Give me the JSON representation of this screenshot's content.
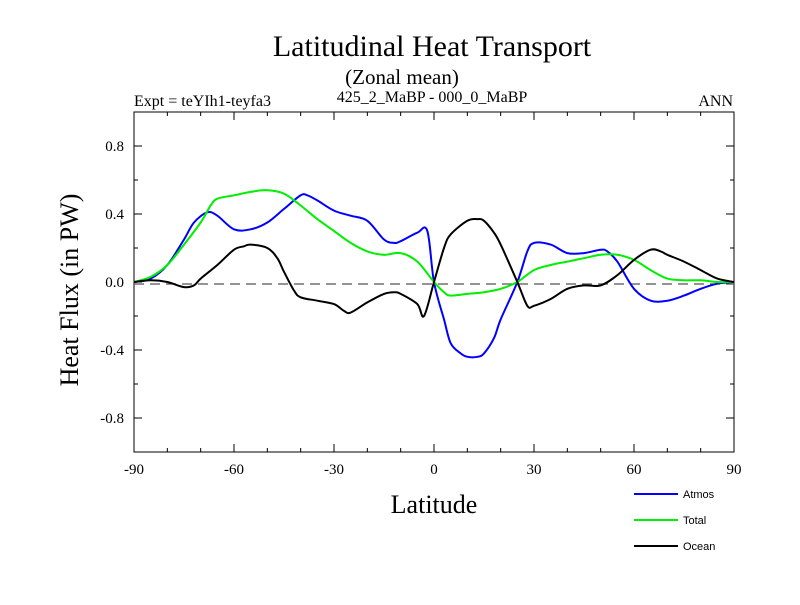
{
  "chart_data": {
    "type": "line",
    "title": "Latitudinal Heat Transport",
    "subtitle": "(Zonal mean)",
    "left_label": "Expt = teYIh1-teyfa3",
    "center_label": "425_2_MaBP - 000_0_MaBP",
    "right_label": "ANN",
    "xlabel": "Latitude",
    "ylabel": "Heat Flux (in PW)",
    "xlim": [
      -90,
      90
    ],
    "ylim": [
      -1.0,
      1.0
    ],
    "xticks": [
      -90,
      -60,
      -30,
      0,
      30,
      60,
      90
    ],
    "xtick_labels": [
      "-90",
      "-60",
      "-30",
      "0",
      "30",
      "60",
      "90"
    ],
    "yticks": [
      -0.8,
      -0.4,
      0.0,
      0.4,
      0.8
    ],
    "ytick_labels": [
      "-0.8",
      "-0.4",
      "0.0",
      "0.4",
      "0.8"
    ],
    "grid": false,
    "zero_line": "dashed",
    "legend_position": "bottom-right",
    "series": [
      {
        "name": "Atmos",
        "color": "#0000ff",
        "x": [
          -90,
          -85,
          -80,
          -75,
          -72,
          -68,
          -65,
          -60,
          -55,
          -50,
          -45,
          -40,
          -38,
          -35,
          -30,
          -25,
          -20,
          -15,
          -12,
          -10,
          -5,
          -2,
          0,
          3,
          5,
          8,
          10,
          13,
          15,
          18,
          20,
          25,
          28,
          30,
          35,
          40,
          45,
          50,
          52,
          55,
          60,
          65,
          70,
          75,
          80,
          85,
          90
        ],
        "y": [
          0.0,
          0.02,
          0.1,
          0.25,
          0.35,
          0.41,
          0.39,
          0.31,
          0.31,
          0.35,
          0.43,
          0.51,
          0.51,
          0.48,
          0.42,
          0.39,
          0.36,
          0.25,
          0.23,
          0.24,
          0.29,
          0.3,
          0.0,
          -0.22,
          -0.36,
          -0.42,
          -0.44,
          -0.44,
          -0.42,
          -0.33,
          -0.22,
          0.0,
          0.18,
          0.23,
          0.22,
          0.17,
          0.17,
          0.19,
          0.18,
          0.12,
          -0.04,
          -0.11,
          -0.11,
          -0.08,
          -0.04,
          -0.01,
          0.0
        ]
      },
      {
        "name": "Total",
        "color": "#00ee00",
        "x": [
          -90,
          -85,
          -80,
          -75,
          -70,
          -67,
          -65,
          -60,
          -55,
          -50,
          -45,
          -40,
          -35,
          -30,
          -25,
          -20,
          -15,
          -10,
          -5,
          0,
          3,
          5,
          10,
          15,
          20,
          25,
          30,
          35,
          40,
          45,
          50,
          55,
          60,
          65,
          70,
          75,
          80,
          85,
          90
        ],
        "y": [
          0.0,
          0.03,
          0.1,
          0.22,
          0.35,
          0.45,
          0.49,
          0.51,
          0.53,
          0.54,
          0.52,
          0.45,
          0.37,
          0.3,
          0.23,
          0.18,
          0.16,
          0.17,
          0.12,
          0.0,
          -0.06,
          -0.08,
          -0.07,
          -0.06,
          -0.04,
          0.0,
          0.07,
          0.1,
          0.12,
          0.14,
          0.16,
          0.16,
          0.13,
          0.07,
          0.02,
          0.01,
          0.01,
          0.0,
          0.0
        ]
      },
      {
        "name": "Ocean",
        "color": "#000000",
        "x": [
          -90,
          -85,
          -80,
          -75,
          -72,
          -70,
          -65,
          -60,
          -57,
          -55,
          -50,
          -47,
          -45,
          -42,
          -40,
          -35,
          -30,
          -27,
          -25,
          -20,
          -15,
          -12,
          -10,
          -5,
          -3,
          0,
          3,
          5,
          10,
          13,
          15,
          18,
          20,
          25,
          28,
          30,
          35,
          40,
          45,
          50,
          55,
          60,
          65,
          68,
          70,
          75,
          80,
          85,
          90
        ],
        "y": [
          0.0,
          0.01,
          0.0,
          -0.03,
          -0.02,
          0.02,
          0.1,
          0.19,
          0.21,
          0.22,
          0.2,
          0.14,
          0.06,
          -0.05,
          -0.09,
          -0.11,
          -0.13,
          -0.17,
          -0.18,
          -0.12,
          -0.07,
          -0.06,
          -0.07,
          -0.13,
          -0.2,
          0.0,
          0.2,
          0.28,
          0.36,
          0.37,
          0.36,
          0.29,
          0.22,
          0.0,
          -0.14,
          -0.14,
          -0.1,
          -0.04,
          -0.02,
          -0.02,
          0.04,
          0.13,
          0.19,
          0.18,
          0.16,
          0.12,
          0.07,
          0.02,
          0.0
        ]
      }
    ]
  }
}
